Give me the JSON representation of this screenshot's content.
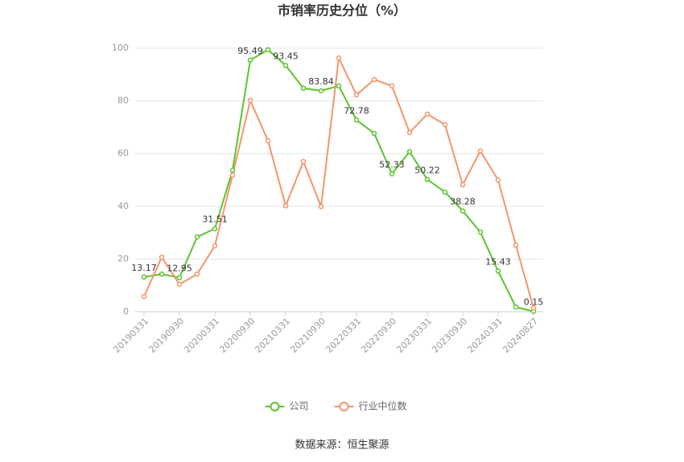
{
  "chart_data": {
    "type": "line",
    "title": "市销率历史分位（%）",
    "categories": [
      "20190331",
      null,
      "20190930",
      null,
      "20200331",
      null,
      "20200930",
      null,
      "20210331",
      null,
      "20210930",
      null,
      "20220331",
      null,
      "20220930",
      null,
      "20230331",
      null,
      "20230930",
      null,
      "20240331",
      null,
      "20240827"
    ],
    "series": [
      {
        "name": "公司",
        "color": "#5cc42f",
        "values": [
          13.17,
          14.3,
          12.95,
          28.4,
          31.51,
          53.7,
          95.49,
          99.4,
          93.45,
          84.8,
          83.84,
          85.7,
          72.78,
          67.7,
          52.33,
          60.7,
          50.22,
          45.4,
          38.28,
          30.2,
          15.43,
          1.8,
          0.15
        ],
        "value_labels": [
          "13.17",
          null,
          "12.95",
          null,
          "31.51",
          null,
          "95.49",
          null,
          "93.45",
          null,
          "83.84",
          null,
          "72.78",
          null,
          "52.33",
          null,
          "50.22",
          null,
          "38.28",
          null,
          "15.43",
          null,
          "0.15"
        ]
      },
      {
        "name": "行业中位数",
        "color": "#f4956a",
        "values": [
          5.8,
          20.7,
          10.4,
          14.3,
          25.0,
          51.8,
          80.2,
          64.9,
          40.2,
          57.0,
          39.9,
          96.3,
          82.3,
          88.1,
          85.7,
          68.0,
          75.0,
          71.0,
          48.2,
          61.0,
          50.0,
          25.3,
          1.5
        ]
      }
    ],
    "ylim": [
      0,
      100
    ],
    "yticks": [
      0,
      20,
      40,
      60,
      80,
      100
    ],
    "grid": true,
    "source": "数据来源：恒生聚源"
  }
}
